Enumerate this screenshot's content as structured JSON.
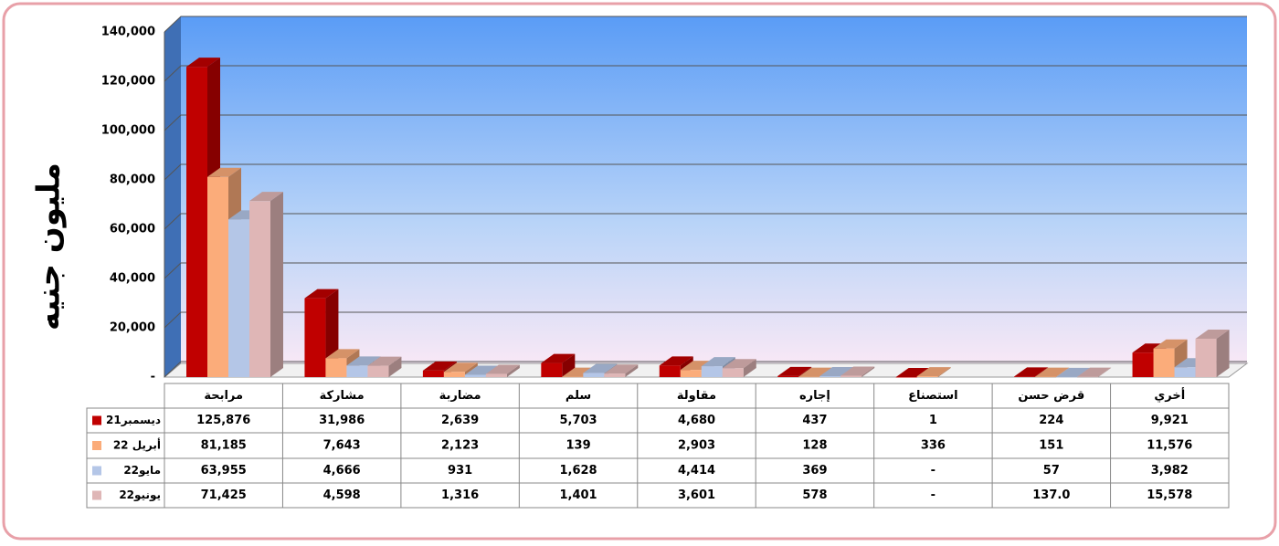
{
  "chart_data": {
    "type": "bar3d",
    "y_label": "مليون جنيه",
    "categories": [
      "مرابحة",
      "مشاركة",
      "مضاربة",
      "سلم",
      "مقاولة",
      "إجاره",
      "استصناع",
      "قرض حسن",
      "أخري"
    ],
    "series": [
      {
        "name": "ديسمبر21",
        "color": "#c00000",
        "values": [
          125876,
          31986,
          2639,
          5703,
          4680,
          437,
          1,
          224,
          9921
        ],
        "value_labels": [
          "125,876",
          "31,986",
          "2,639",
          "5,703",
          "4,680",
          "437",
          "1",
          "224",
          "9,921"
        ]
      },
      {
        "name": "أبريل 22",
        "color": "#fbac7a",
        "values": [
          81185,
          7643,
          2123,
          139,
          2903,
          128,
          336,
          151,
          11576
        ],
        "value_labels": [
          "81,185",
          "7,643",
          "2,123",
          "139",
          "2,903",
          "128",
          "336",
          "151",
          "11,576"
        ]
      },
      {
        "name": "مايو22",
        "color": "#b4c6e7",
        "values": [
          63955,
          4666,
          931,
          1628,
          4414,
          369,
          null,
          57,
          3982
        ],
        "value_labels": [
          "63,955",
          "4,666",
          "931",
          "1,628",
          "4,414",
          "369",
          "-",
          "57",
          "3,982"
        ]
      },
      {
        "name": "يونيو22",
        "color": "#dfb6b6",
        "values": [
          71425,
          4598,
          1316,
          1401,
          3601,
          578,
          null,
          137,
          15578
        ],
        "value_labels": [
          "71,425",
          "4,598",
          "1,316",
          "1,401",
          "3,601",
          "578",
          "-",
          "137.0",
          "15,578"
        ]
      }
    ],
    "ylim": [
      0,
      140000
    ],
    "yticks": [
      {
        "value": 0,
        "label": "-"
      },
      {
        "value": 20000,
        "label": "20,000"
      },
      {
        "value": 40000,
        "label": "40,000"
      },
      {
        "value": 60000,
        "label": "60,000"
      },
      {
        "value": 80000,
        "label": "80,000"
      },
      {
        "value": 100000,
        "label": "100,000"
      },
      {
        "value": 120000,
        "label": "120,000"
      },
      {
        "value": 140000,
        "label": "140,000"
      }
    ],
    "grid": true
  }
}
